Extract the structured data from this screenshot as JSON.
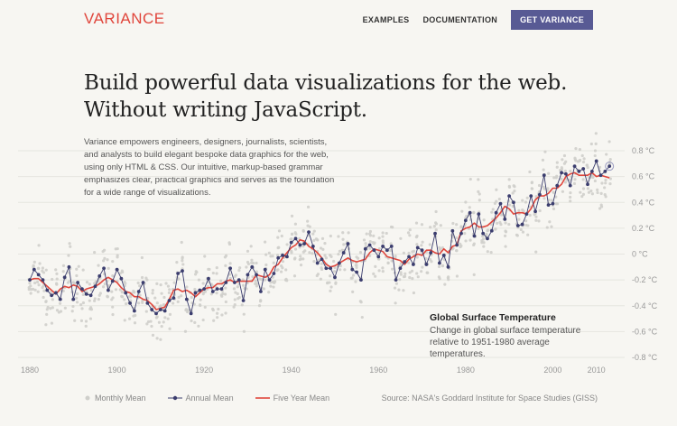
{
  "brand": {
    "logo": "VARIANCE"
  },
  "nav": {
    "examples": "EXAMPLES",
    "documentation": "DOCUMENTATION",
    "cta": "GET VARIANCE"
  },
  "hero": {
    "headline_line1": "Build powerful data visualizations for the web.",
    "headline_line2": "Without writing JavaScript.",
    "intro": "Variance empowers engineers, designers, journalists, scientists, and analysts to build elegant bespoke data graphics for the web, using only HTML & CSS. Our intuitive, markup-based grammar emphasizes clear, practical graphics and serves as the foundation for a wide range of visualizations."
  },
  "chart": {
    "title": "Global Surface Temperature",
    "subtitle": "Change in global surface temperature relative to 1951-1980 average temperatures.",
    "legend": {
      "monthly": "Monthly Mean",
      "annual": "Annual Mean",
      "five_year": "Five Year Mean"
    },
    "source": "Source: NASA's Goddard Institute for Space Studies (GISS)",
    "colors": {
      "monthly": "#cfcfcb",
      "annual": "#3b3d6e",
      "five_year": "#e0463c",
      "grid": "#e6e5e0",
      "axis_text": "#999999"
    }
  },
  "chart_data": {
    "type": "line",
    "title": "Global Surface Temperature",
    "xlabel": "",
    "ylabel": "",
    "xlim": [
      1880,
      2014
    ],
    "ylim": [
      -0.8,
      0.8
    ],
    "x_ticks": [
      "1880",
      "1900",
      "1920",
      "1940",
      "1960",
      "1980",
      "2000",
      "2010"
    ],
    "y_ticks": [
      "0.8 °C",
      "0.6 °C",
      "0.4 °C",
      "0.2 °C",
      "0 °C",
      "-0.2 °C",
      "-0.4 °C",
      "-0.6 °C",
      "-0.8 °C"
    ],
    "grid": true,
    "legend_position": "bottom-left",
    "x": [
      1880,
      1881,
      1882,
      1883,
      1884,
      1885,
      1886,
      1887,
      1888,
      1889,
      1890,
      1891,
      1892,
      1893,
      1894,
      1895,
      1896,
      1897,
      1898,
      1899,
      1900,
      1901,
      1902,
      1903,
      1904,
      1905,
      1906,
      1907,
      1908,
      1909,
      1910,
      1911,
      1912,
      1913,
      1914,
      1915,
      1916,
      1917,
      1918,
      1919,
      1920,
      1921,
      1922,
      1923,
      1924,
      1925,
      1926,
      1927,
      1928,
      1929,
      1930,
      1931,
      1932,
      1933,
      1934,
      1935,
      1936,
      1937,
      1938,
      1939,
      1940,
      1941,
      1942,
      1943,
      1944,
      1945,
      1946,
      1947,
      1948,
      1949,
      1950,
      1951,
      1952,
      1953,
      1954,
      1955,
      1956,
      1957,
      1958,
      1959,
      1960,
      1961,
      1962,
      1963,
      1964,
      1965,
      1966,
      1967,
      1968,
      1969,
      1970,
      1971,
      1972,
      1973,
      1974,
      1975,
      1976,
      1977,
      1978,
      1979,
      1980,
      1981,
      1982,
      1983,
      1984,
      1985,
      1986,
      1987,
      1988,
      1989,
      1990,
      1991,
      1992,
      1993,
      1994,
      1995,
      1996,
      1997,
      1998,
      1999,
      2000,
      2001,
      2002,
      2003,
      2004,
      2005,
      2006,
      2007,
      2008,
      2009,
      2010,
      2011,
      2012,
      2013
    ],
    "series": [
      {
        "name": "Annual Mean",
        "values": [
          -0.2,
          -0.12,
          -0.16,
          -0.2,
          -0.28,
          -0.32,
          -0.3,
          -0.35,
          -0.18,
          -0.1,
          -0.35,
          -0.22,
          -0.27,
          -0.31,
          -0.32,
          -0.25,
          -0.17,
          -0.11,
          -0.28,
          -0.21,
          -0.12,
          -0.19,
          -0.3,
          -0.38,
          -0.44,
          -0.29,
          -0.22,
          -0.38,
          -0.43,
          -0.46,
          -0.43,
          -0.44,
          -0.36,
          -0.34,
          -0.15,
          -0.13,
          -0.35,
          -0.46,
          -0.3,
          -0.28,
          -0.27,
          -0.19,
          -0.29,
          -0.27,
          -0.27,
          -0.22,
          -0.11,
          -0.22,
          -0.2,
          -0.36,
          -0.16,
          -0.1,
          -0.16,
          -0.29,
          -0.12,
          -0.2,
          -0.15,
          -0.03,
          -0.01,
          -0.02,
          0.09,
          0.12,
          0.07,
          0.08,
          0.17,
          0.06,
          -0.07,
          -0.04,
          -0.11,
          -0.11,
          -0.18,
          -0.07,
          0.01,
          0.08,
          -0.12,
          -0.14,
          -0.2,
          0.04,
          0.07,
          0.03,
          -0.02,
          0.06,
          0.03,
          0.06,
          -0.2,
          -0.11,
          -0.06,
          -0.02,
          -0.08,
          0.05,
          0.03,
          -0.08,
          0.01,
          0.16,
          -0.07,
          -0.01,
          -0.1,
          0.18,
          0.07,
          0.16,
          0.26,
          0.32,
          0.14,
          0.31,
          0.16,
          0.12,
          0.18,
          0.32,
          0.39,
          0.27,
          0.45,
          0.4,
          0.22,
          0.23,
          0.31,
          0.45,
          0.33,
          0.46,
          0.61,
          0.38,
          0.39,
          0.53,
          0.63,
          0.62,
          0.53,
          0.68,
          0.64,
          0.66,
          0.54,
          0.64,
          0.72,
          0.61,
          0.64,
          0.68
        ]
      },
      {
        "name": "Five Year Mean",
        "values": [
          -0.2,
          -0.19,
          -0.19,
          -0.22,
          -0.25,
          -0.28,
          -0.31,
          -0.27,
          -0.25,
          -0.26,
          -0.24,
          -0.25,
          -0.29,
          -0.27,
          -0.26,
          -0.25,
          -0.23,
          -0.2,
          -0.18,
          -0.2,
          -0.22,
          -0.26,
          -0.29,
          -0.3,
          -0.33,
          -0.33,
          -0.35,
          -0.36,
          -0.39,
          -0.43,
          -0.42,
          -0.41,
          -0.35,
          -0.28,
          -0.27,
          -0.29,
          -0.28,
          -0.3,
          -0.33,
          -0.3,
          -0.27,
          -0.26,
          -0.26,
          -0.23,
          -0.23,
          -0.21,
          -0.2,
          -0.22,
          -0.21,
          -0.21,
          -0.21,
          -0.21,
          -0.16,
          -0.17,
          -0.18,
          -0.16,
          -0.1,
          -0.08,
          -0.03,
          0.01,
          0.05,
          0.07,
          0.11,
          0.1,
          0.06,
          0.04,
          0.01,
          -0.03,
          -0.08,
          -0.1,
          -0.09,
          -0.07,
          -0.05,
          -0.03,
          -0.05,
          -0.06,
          -0.05,
          -0.04,
          0.01,
          0.04,
          0.03,
          0.02,
          -0.02,
          -0.03,
          -0.04,
          -0.05,
          -0.08,
          -0.04,
          -0.02,
          0.0,
          -0.01,
          0.03,
          0.03,
          0.01,
          0.0,
          0.04,
          0.01,
          0.06,
          0.07,
          0.18,
          0.2,
          0.21,
          0.24,
          0.21,
          0.21,
          0.22,
          0.25,
          0.28,
          0.32,
          0.37,
          0.35,
          0.31,
          0.32,
          0.32,
          0.31,
          0.35,
          0.42,
          0.45,
          0.45,
          0.47,
          0.51,
          0.51,
          0.54,
          0.6,
          0.62,
          0.63,
          0.61,
          0.61,
          0.61,
          0.63,
          0.6,
          0.61,
          0.6,
          0.59
        ]
      }
    ]
  }
}
